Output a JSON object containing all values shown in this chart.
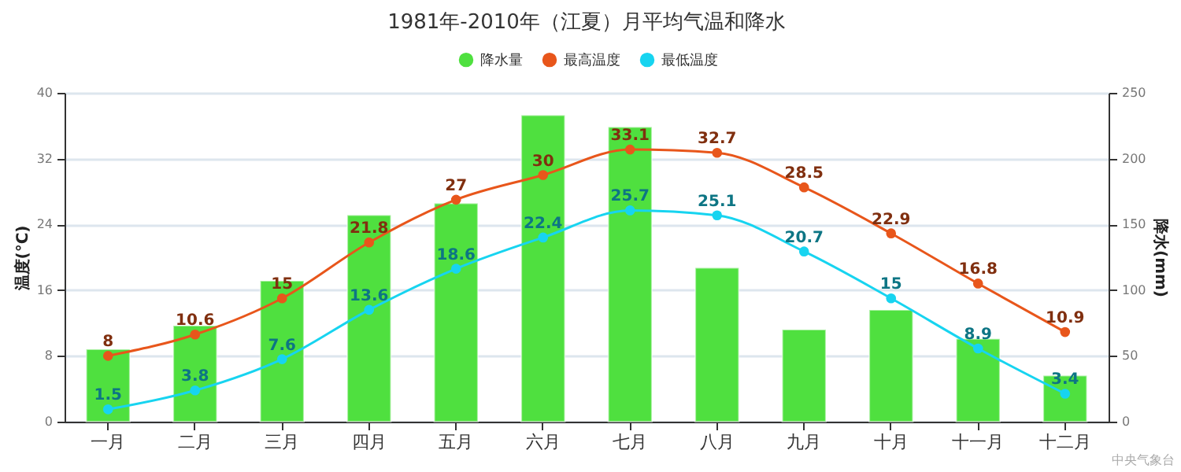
{
  "chart_data": {
    "type": "bar",
    "title": "1981年-2010年（江夏）月平均气温和降水",
    "categories": [
      "一月",
      "二月",
      "三月",
      "四月",
      "五月",
      "六月",
      "七月",
      "八月",
      "九月",
      "十月",
      "十一月",
      "十二月"
    ],
    "series": [
      {
        "name": "降水量",
        "axis": "y2",
        "color": "#4fe03f",
        "values": [
          55,
          73,
          107,
          157,
          166,
          233,
          224,
          117,
          70,
          85,
          63,
          35
        ]
      },
      {
        "name": "最高温度",
        "type": "line",
        "color": "#e8561b",
        "values": [
          8,
          10.6,
          15,
          21.8,
          27,
          30,
          33.1,
          32.7,
          28.5,
          22.9,
          16.8,
          10.9
        ],
        "value_labels": [
          "8",
          "10.6",
          "15",
          "21.8",
          "27",
          "30",
          "33.1",
          "32.7",
          "28.5",
          "22.9",
          "16.8",
          "10.9"
        ]
      },
      {
        "name": "最低温度",
        "type": "line",
        "color": "#17d4f0",
        "values": [
          1.5,
          3.8,
          7.6,
          13.6,
          18.6,
          22.4,
          25.7,
          25.1,
          20.7,
          15,
          8.9,
          3.4
        ],
        "value_labels": [
          "1.5",
          "3.8",
          "7.6",
          "13.6",
          "18.6",
          "22.4",
          "25.7",
          "25.1",
          "20.7",
          "15",
          "8.9",
          "3.4"
        ]
      }
    ],
    "ylabel": "温度(°C)",
    "y2label": "降水(mm)",
    "ylim": [
      0,
      40
    ],
    "yticks": [
      0,
      8,
      16,
      24,
      32,
      40
    ],
    "y2lim": [
      0,
      250
    ],
    "y2ticks": [
      0,
      50,
      100,
      150,
      200,
      250
    ],
    "grid": "y",
    "legend": "top",
    "marker": "circle",
    "annotations": [
      "中央气象台"
    ]
  }
}
